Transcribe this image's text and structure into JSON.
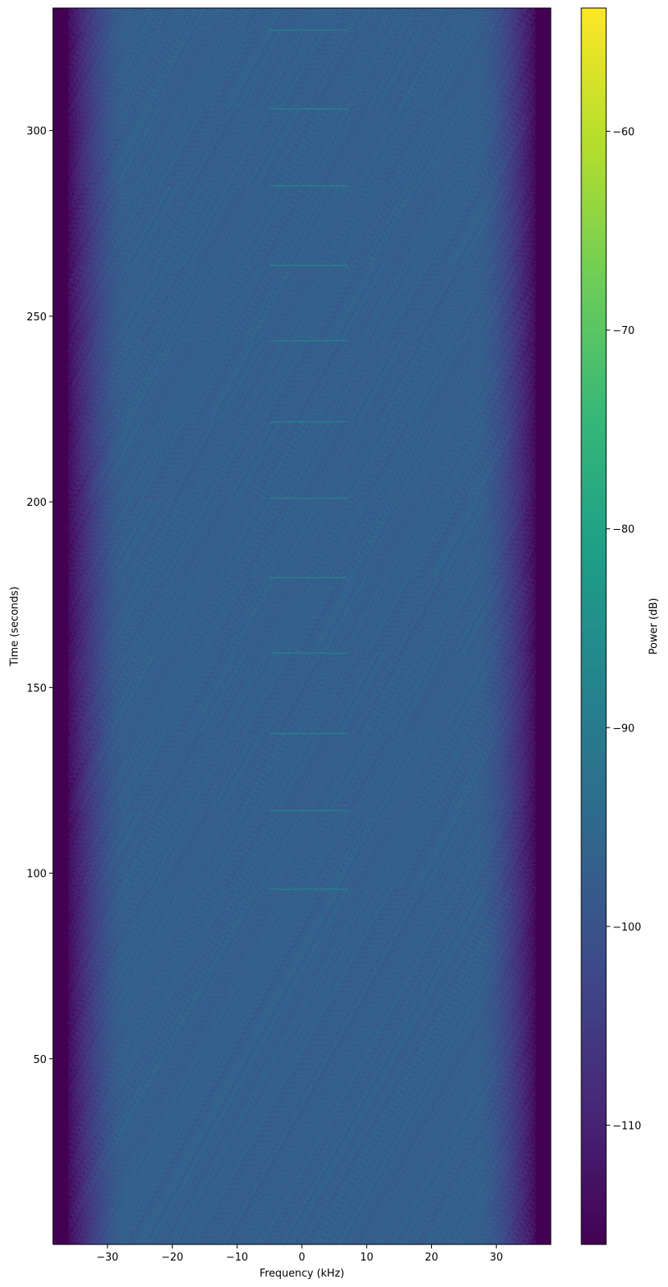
{
  "chart_data": {
    "type": "heatmap",
    "xlabel": "Frequency (kHz)",
    "ylabel": "Time (seconds)",
    "colorbar_label": "Power (dB)",
    "colormap": "viridis",
    "xlim": [
      -38.4,
      38.4
    ],
    "ylim": [
      0,
      333
    ],
    "clim": [
      -116.0,
      -53.8
    ],
    "xticks": [
      -30,
      -20,
      -10,
      0,
      10,
      20,
      30
    ],
    "xtick_labels": [
      "−30",
      "−20",
      "−10",
      "0",
      "10",
      "20",
      "30"
    ],
    "yticks": [
      50,
      100,
      150,
      200,
      250,
      300
    ],
    "ytick_labels": [
      "50",
      "100",
      "150",
      "200",
      "250",
      "300"
    ],
    "cticks": [
      -110,
      -100,
      -90,
      -80,
      -70,
      -60
    ],
    "ctick_labels": [
      "−110",
      "−100",
      "−90",
      "−80",
      "−70",
      "−60"
    ],
    "noise_floor_db": -97,
    "passband_edge_khz": 36,
    "rolloff_start_khz": 27,
    "out_of_band_db": -116,
    "bursts": {
      "times_s": [
        95.8,
        117.0,
        137.8,
        159.3,
        179.6,
        201.1,
        221.7,
        243.4,
        263.7,
        285.2,
        306.0,
        327.2
      ],
      "freq_range_khz": [
        -5,
        7
      ],
      "power_db": -86
    },
    "grid": false
  }
}
